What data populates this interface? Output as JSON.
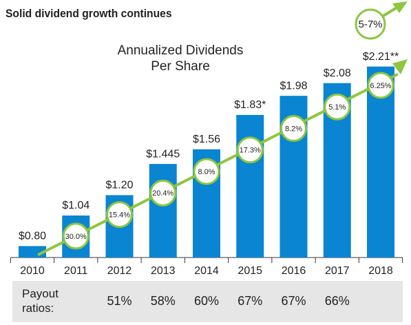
{
  "chart_data": {
    "type": "bar",
    "title": "Solid dividend growth continues",
    "chart_title": "Annualized Dividends Per Share",
    "annotation": "5-7%",
    "categories": [
      "2010",
      "2011",
      "2012",
      "2013",
      "2014",
      "2015",
      "2016",
      "2017",
      "2018"
    ],
    "values": [
      0.8,
      1.04,
      1.2,
      1.445,
      1.56,
      1.83,
      1.98,
      2.08,
      2.21
    ],
    "value_labels": [
      "$0.80",
      "$1.04",
      "$1.20",
      "$1.445",
      "$1.56",
      "$1.83*",
      "$1.98",
      "$2.08",
      "$2.21**"
    ],
    "color": "#0a85d1",
    "ylim": [
      0.71,
      2.3
    ],
    "growth": {
      "color": "#8dc63f",
      "values": [
        null,
        30.0,
        15.4,
        20.4,
        8.0,
        17.3,
        8.2,
        5.1,
        6.25
      ],
      "value_labels": [
        null,
        "30.0%",
        "15.4%",
        "20.4%",
        "8.0%",
        "17.3%",
        "8.2%",
        "5.1%",
        "6.25%"
      ]
    },
    "payout": {
      "label": "Payout ratios:",
      "values": [
        null,
        null,
        51,
        58,
        60,
        67,
        67,
        66,
        null
      ],
      "value_labels": [
        null,
        null,
        "51%",
        "58%",
        "60%",
        "67%",
        "67%",
        "66%",
        null
      ]
    }
  }
}
